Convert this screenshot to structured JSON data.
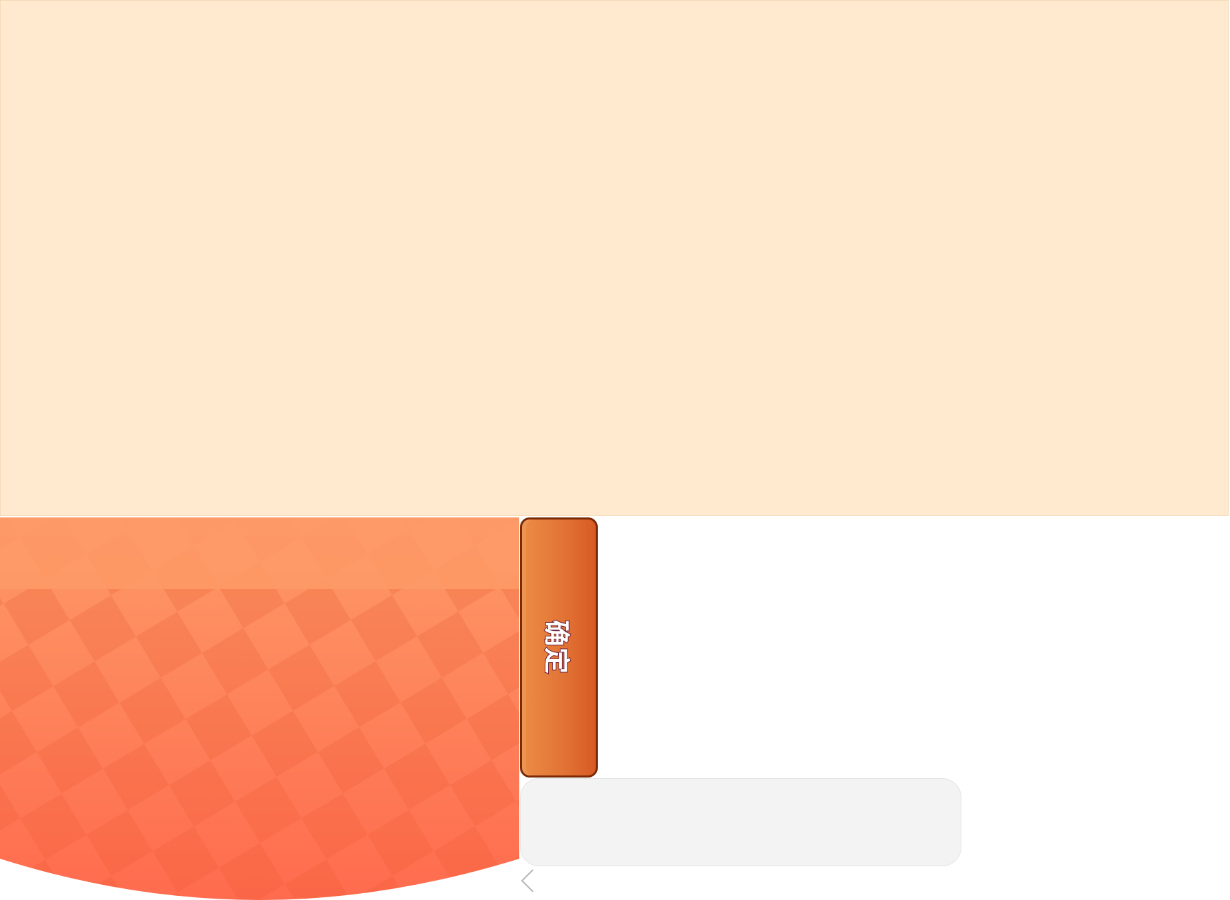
{
  "colors": {
    "top_panel_bg": "#ffe9cf",
    "orange_light": "#fd9a67",
    "orange_dark": "#ff6b4e",
    "button_border": "#7a2a06",
    "field_bg": "#f3f3f3"
  },
  "confirm_button": {
    "label": "确定"
  },
  "icons": {
    "back": "chevron-left-icon"
  }
}
